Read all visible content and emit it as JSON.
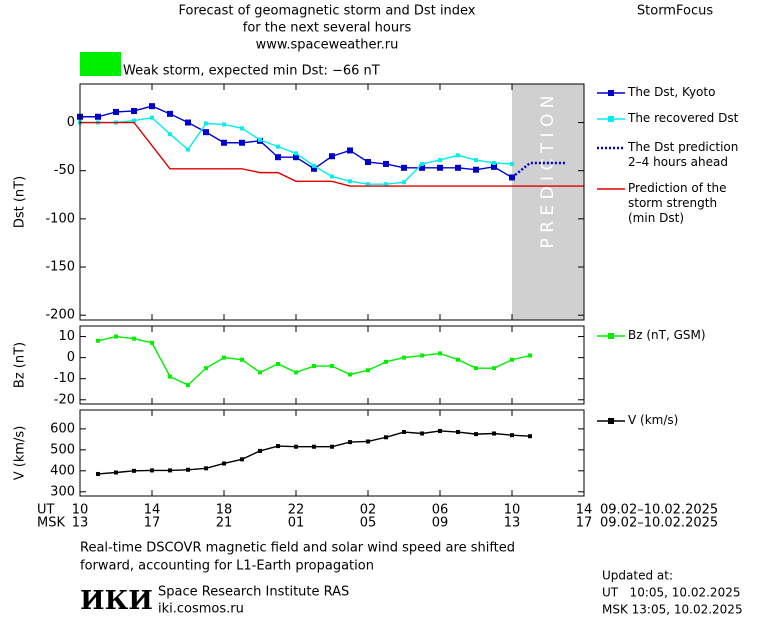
{
  "header": {
    "title_lines": [
      "Forecast of geomagnetic storm and Dst index",
      "for the next several hours",
      "www.spaceweather.ru"
    ],
    "brand": "StormFocus",
    "storm_label": "Weak storm, expected min Dst: −66 nT",
    "storm_color": "#00ee00"
  },
  "chart_data": {
    "type": "line",
    "categories": [
      "10",
      null,
      null,
      null,
      "14",
      null,
      null,
      null,
      "18",
      null,
      null,
      null,
      "22",
      null,
      null,
      null,
      "02",
      null,
      null,
      null,
      "06",
      null,
      null,
      null,
      "10",
      null,
      null,
      null,
      "14"
    ],
    "categories_msk": [
      "13",
      null,
      null,
      null,
      "17",
      null,
      null,
      null,
      "21",
      null,
      null,
      null,
      "01",
      null,
      null,
      null,
      "05",
      null,
      null,
      null,
      "09",
      null,
      null,
      null,
      "13",
      null,
      null,
      null,
      "17"
    ],
    "row_labels": [
      "UT",
      "MSK"
    ],
    "date_ranges": [
      "09.02–10.02.2025",
      "09.02–10.02.2025"
    ],
    "prediction_label": "P R E D I C T I O N",
    "panels": [
      {
        "ylabel": "Dst (nT)",
        "ylim": [
          -205,
          40
        ],
        "yticks": [
          0,
          -50,
          -100,
          -150,
          -200
        ],
        "series": [
          {
            "name": "The Dst, Kyoto",
            "color": "#0000cc",
            "marker": "square",
            "style": "solid",
            "values": [
              6,
              6,
              11,
              12,
              17,
              9,
              0,
              -10,
              -21,
              -21,
              -19,
              -36,
              -36,
              -48,
              -35,
              -29,
              -41,
              -43,
              -47,
              -47,
              -47,
              -47,
              -49,
              -46,
              -57,
              null,
              null,
              null,
              null
            ]
          },
          {
            "name": "The recovered Dst",
            "color": "#00eeee",
            "marker": "small-square",
            "style": "solid",
            "values": [
              0,
              0,
              0,
              2,
              5,
              -12,
              -28,
              -1,
              -2,
              -6,
              -18,
              -25,
              -32,
              -45,
              -56,
              -61,
              -64,
              -64,
              -62,
              -43,
              -39,
              -34,
              -39,
              -42,
              -43,
              null,
              null,
              null,
              null
            ]
          },
          {
            "name": "The Dst prediction\n2–4 hours ahead",
            "color": "#0000cc",
            "marker": "none",
            "style": "dotted",
            "values": [
              null,
              null,
              null,
              null,
              null,
              null,
              null,
              null,
              null,
              null,
              null,
              null,
              null,
              null,
              null,
              null,
              null,
              null,
              null,
              null,
              null,
              null,
              null,
              null,
              -57,
              -42,
              -42,
              -42,
              null
            ]
          },
          {
            "name": "Prediction of the\nstorm strength\n(min Dst)",
            "color": "#dd0000",
            "marker": "none",
            "style": "solid",
            "values": [
              0,
              0,
              0,
              0,
              -24,
              -48,
              -48,
              -48,
              -48,
              -48,
              -52,
              -52,
              -61,
              -61,
              -61,
              -66,
              -66,
              -66,
              -66,
              -66,
              -66,
              -66,
              -66,
              -66,
              -66,
              -66,
              -66,
              -66,
              -66
            ]
          }
        ]
      },
      {
        "ylabel": "Bz (nT)",
        "ylim": [
          -22,
          15
        ],
        "yticks": [
          10,
          0,
          -10,
          -20
        ],
        "series": [
          {
            "name": "Bz (nT, GSM)",
            "color": "#00ee00",
            "marker": "small-square",
            "style": "solid",
            "values": [
              null,
              8,
              10,
              9,
              7,
              -9,
              -13,
              -5,
              0,
              -1,
              -7,
              -3,
              -7,
              -4,
              -4,
              -8,
              -6,
              -2,
              0,
              1,
              2,
              -1,
              -5,
              -5,
              -1,
              1,
              null,
              null,
              null
            ]
          }
        ]
      },
      {
        "ylabel": "V (km/s)",
        "ylim": [
          280,
          690
        ],
        "yticks": [
          600,
          500,
          400,
          300
        ],
        "series": [
          {
            "name": "V (km/s)",
            "color": "#000000",
            "marker": "small-square",
            "style": "solid",
            "values": [
              null,
              385,
              392,
              400,
              402,
              402,
              405,
              412,
              435,
              455,
              495,
              518,
              515,
              515,
              515,
              537,
              540,
              560,
              585,
              578,
              590,
              585,
              575,
              578,
              570,
              565,
              null,
              null,
              null
            ]
          }
        ]
      }
    ]
  },
  "footer": {
    "note_lines": [
      "Real-time DSCOVR magnetic field and solar wind speed are shifted",
      "forward, accounting for L1-Earth propagation"
    ],
    "logo": "ИКИ",
    "institute": "Space Research Institute RAS",
    "site": "iki.cosmos.ru",
    "updated_label": "Updated at:",
    "updated_ut": "UT   10:05, 10.02.2025",
    "updated_msk": "MSK 13:05, 10.02.2025"
  }
}
